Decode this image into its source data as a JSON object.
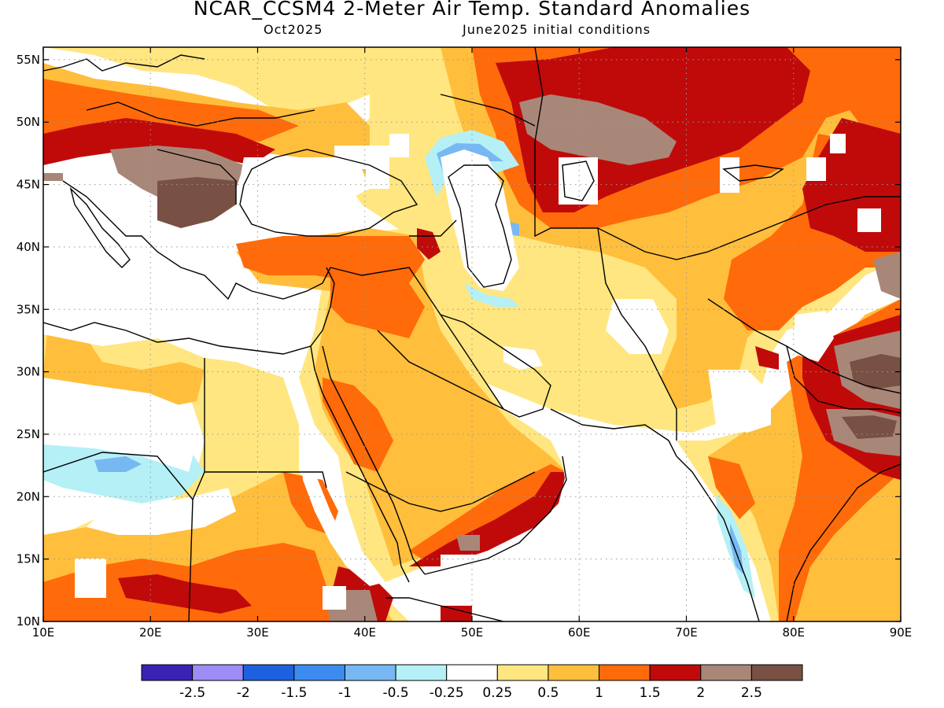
{
  "title": "NCAR_CCSM4 2-Meter Air Temp. Standard Anomalies",
  "subtitle_left": "Oct2025",
  "subtitle_right": "June2025 initial conditions",
  "map": {
    "lon_range": [
      10,
      90
    ],
    "lat_range": [
      10,
      56
    ],
    "lon_ticks": [
      {
        "value": 10,
        "label": "10E"
      },
      {
        "value": 20,
        "label": "20E"
      },
      {
        "value": 30,
        "label": "30E"
      },
      {
        "value": 40,
        "label": "40E"
      },
      {
        "value": 50,
        "label": "50E"
      },
      {
        "value": 60,
        "label": "60E"
      },
      {
        "value": 70,
        "label": "70E"
      },
      {
        "value": 80,
        "label": "80E"
      },
      {
        "value": 90,
        "label": "90E"
      }
    ],
    "lat_ticks": [
      {
        "value": 10,
        "label": "10N"
      },
      {
        "value": 15,
        "label": "15N"
      },
      {
        "value": 20,
        "label": "20N"
      },
      {
        "value": 25,
        "label": "25N"
      },
      {
        "value": 30,
        "label": "30N"
      },
      {
        "value": 35,
        "label": "35N"
      },
      {
        "value": 40,
        "label": "40N"
      },
      {
        "value": 45,
        "label": "45N"
      },
      {
        "value": 50,
        "label": "50N"
      },
      {
        "value": 55,
        "label": "55N"
      }
    ],
    "grid": true
  },
  "colorbar": {
    "colors": [
      "#3a22b4",
      "#a08cf6",
      "#1c62e0",
      "#3c8cf0",
      "#78b8f2",
      "#b4f0f6",
      "#ffffff",
      "#ffe680",
      "#ffbe3c",
      "#ff6a0a",
      "#c00a0a",
      "#a88778",
      "#785044"
    ],
    "labels": [
      "-2.5",
      "-2",
      "-1.5",
      "-1",
      "-0.5",
      "-0.25",
      "0.25",
      "0.5",
      "1",
      "1.5",
      "2",
      "2.5"
    ]
  }
}
